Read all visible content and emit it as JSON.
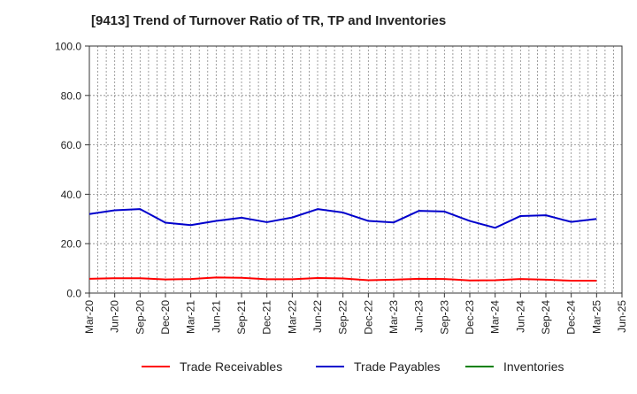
{
  "chart_data": {
    "type": "line",
    "title": "[9413]  Trend of Turnover Ratio of TR, TP and Inventories",
    "xlabel": "",
    "ylabel": "",
    "ylim": [
      0,
      100
    ],
    "yticks": [
      "0.0",
      "20.0",
      "40.0",
      "60.0",
      "80.0",
      "100.0"
    ],
    "x": [
      "Mar-20",
      "Jun-20",
      "Sep-20",
      "Dec-20",
      "Mar-21",
      "Jun-21",
      "Sep-21",
      "Dec-21",
      "Mar-22",
      "Jun-22",
      "Sep-22",
      "Dec-22",
      "Mar-23",
      "Jun-23",
      "Sep-23",
      "Dec-23",
      "Mar-24",
      "Jun-24",
      "Sep-24",
      "Dec-24",
      "Mar-25",
      "Jun-25"
    ],
    "grid": true,
    "legend_position": "bottom",
    "series": [
      {
        "name": "Trade Receivables",
        "color": "#ff0000",
        "values": [
          5.8,
          6.0,
          6.0,
          5.5,
          5.7,
          6.3,
          6.2,
          5.6,
          5.6,
          6.1,
          5.9,
          5.2,
          5.4,
          5.8,
          5.7,
          5.1,
          5.2,
          5.7,
          5.4,
          5.0,
          5.0,
          null
        ]
      },
      {
        "name": "Trade Payables",
        "color": "#0000cc",
        "values": [
          32.0,
          33.5,
          34.0,
          28.5,
          27.5,
          29.2,
          30.5,
          28.7,
          30.6,
          34.0,
          32.6,
          29.2,
          28.6,
          33.3,
          33.0,
          29.2,
          26.4,
          31.2,
          31.5,
          28.8,
          30.0,
          null
        ]
      },
      {
        "name": "Inventories",
        "color": "#008000",
        "values": [
          null,
          null,
          null,
          null,
          null,
          null,
          null,
          null,
          null,
          null,
          null,
          null,
          null,
          null,
          null,
          null,
          null,
          null,
          null,
          null,
          null,
          null
        ]
      }
    ]
  }
}
